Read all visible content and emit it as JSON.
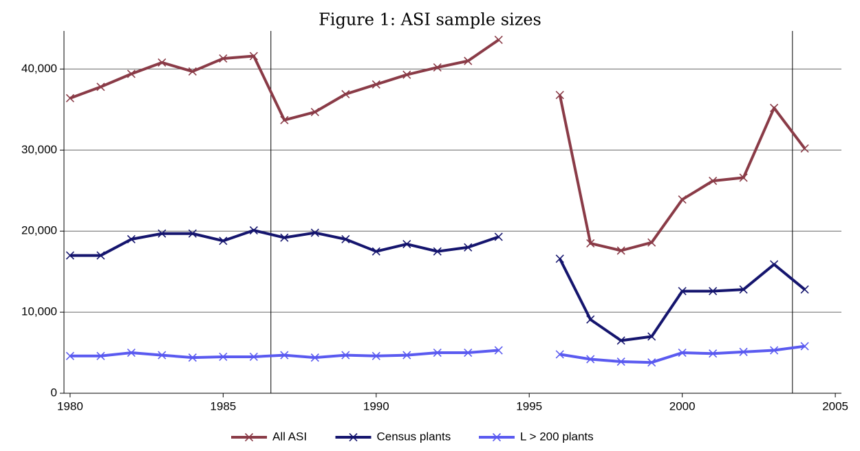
{
  "chart_data": {
    "type": "line",
    "title": "Figure 1: ASI sample sizes",
    "x": [
      1980,
      1981,
      1982,
      1983,
      1984,
      1985,
      1986,
      1987,
      1988,
      1989,
      1990,
      1991,
      1992,
      1993,
      1994,
      1995,
      1996,
      1997,
      1998,
      1999,
      2000,
      2001,
      2002,
      2003,
      2004
    ],
    "series": [
      {
        "name": "All ASI",
        "color": "#8a3b47",
        "values": [
          36400,
          37800,
          39400,
          40800,
          39700,
          41300,
          41600,
          33700,
          34700,
          36900,
          38100,
          39300,
          40200,
          41000,
          43600,
          null,
          36800,
          18500,
          17600,
          18600,
          23900,
          26200,
          26600,
          35200,
          30200
        ]
      },
      {
        "name": "Census plants",
        "color": "#15156e",
        "values": [
          17000,
          17000,
          19000,
          19700,
          19700,
          18800,
          20100,
          19200,
          19800,
          19000,
          17500,
          18400,
          17500,
          18000,
          19300,
          null,
          16600,
          9100,
          6500,
          7000,
          12600,
          12600,
          12800,
          15900,
          12800
        ]
      },
      {
        "name": "L > 200 plants",
        "color": "#5a5af0",
        "values": [
          4600,
          4600,
          5000,
          4700,
          4400,
          4500,
          4500,
          4700,
          4400,
          4700,
          4600,
          4700,
          5000,
          5000,
          5300,
          null,
          4800,
          4200,
          3900,
          3800,
          5000,
          4900,
          5100,
          5300,
          5800
        ]
      }
    ],
    "xlim": [
      1979.8,
      2005.2
    ],
    "xticks": [
      1980,
      1985,
      1990,
      1995,
      2000,
      2005
    ],
    "ylim": [
      0,
      44700
    ],
    "yticks": [
      0,
      {
        "value": 10000,
        "label": "10,000"
      },
      {
        "value": 20000,
        "label": "20,000"
      },
      {
        "value": 30000,
        "label": "30,000"
      },
      {
        "value": 40000,
        "label": "40,000"
      }
    ],
    "vlines": [
      1986.56,
      2003.6
    ],
    "grid": true,
    "legend": "bottom"
  }
}
